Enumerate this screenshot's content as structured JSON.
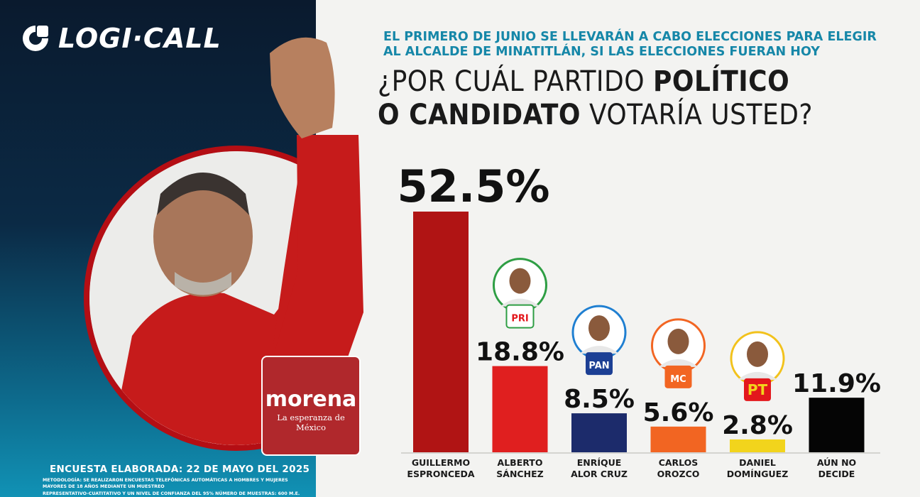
{
  "brand": {
    "name": "LOGI·CALL",
    "colors": {
      "dark_navy": "#0a1a2e",
      "teal": "#1192b5",
      "accent_blue": "#1687a8"
    }
  },
  "header": {
    "intro_line1": "EL PRIMERO DE JUNIO SE LLEVARÁN A CABO ELECCIONES PARA ELEGIR",
    "intro_line2": "AL ALCALDE DE MINATITLÁN, SI LAS ELECCIONES FUERAN HOY",
    "question_line1_a": "¿POR CUÁL PARTIDO ",
    "question_line1_b": "POLÍTICO",
    "question_line2_a": "O CANDIDATO",
    "question_line2_b": " VOTARÍA USTED?"
  },
  "featured": {
    "party_badge_name": "morena",
    "party_badge_slogan": "La esperanza de México",
    "party_color": "#b0282c"
  },
  "footer": {
    "survey_date": "ENCUESTA ELABORADA: 22 DE MAYO DEL 2025",
    "methodology_line1": "METODOLOGÍA: SE REALIZARON ENCUESTAS TELEFÓNICAS AUTOMÁTICAS A HOMBRES Y MUJERES MAYORES DE 18 AÑOS MEDIANTE UN MUESTREO",
    "methodology_line2": "REPRESENTATIVO-CUATITATIVO Y UN NIVEL DE CONFIANZA DEL 95% NÚMERO DE MUESTRAS: 600 M.E. 4.3(+/-)"
  },
  "chart_data": {
    "type": "bar",
    "categories": [
      "GUILLERMO ESPRONCEDA",
      "ALBERTO SÁNCHEZ",
      "ENRÍQUE ALOR CRUZ",
      "CARLOS OROZCO",
      "DANIEL DOMÍNGUEZ",
      "AÚN NO DECIDE"
    ],
    "category_lines": [
      [
        "GUILLERMO",
        "ESPRONCEDA"
      ],
      [
        "ALBERTO",
        "SÁNCHEZ"
      ],
      [
        "ENRÍQUE",
        "ALOR CRUZ"
      ],
      [
        "CARLOS",
        "OROZCO"
      ],
      [
        "DANIEL",
        "DOMÍNGUEZ"
      ],
      [
        "AÚN NO",
        "DECIDE"
      ]
    ],
    "values": [
      52.5,
      18.8,
      8.5,
      5.6,
      2.8,
      11.9
    ],
    "value_labels": [
      "52.5%",
      "18.8%",
      "8.5%",
      "5.6%",
      "2.8%",
      "11.9%"
    ],
    "colors": [
      "#b01414",
      "#e01f1f",
      "#1c2b6b",
      "#f26522",
      "#f2d41c",
      "#050505"
    ],
    "party_logos": [
      "",
      "PRI",
      "PAN",
      "MC",
      "PT",
      ""
    ],
    "party_ring_colors": [
      "",
      "#2e9e44",
      "#1f7fd1",
      "#f26522",
      "#f2c21c",
      ""
    ],
    "ylim": [
      0,
      52.5
    ],
    "grid": false,
    "legend": "none",
    "title": "",
    "xlabel": "",
    "ylabel": ""
  }
}
